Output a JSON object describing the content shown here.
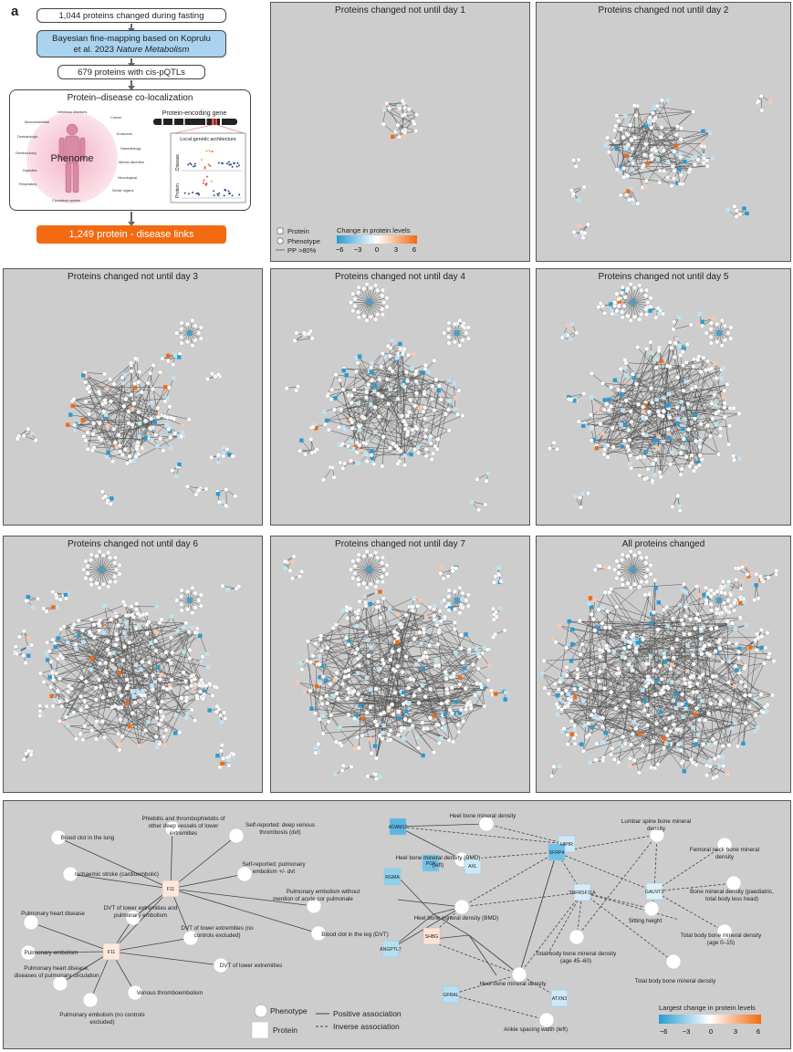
{
  "panel_a": {
    "letter": "a",
    "step1": "1,044 proteins changed during fasting",
    "step2_line1": "Bayesian fine-mapping based on Koprulu",
    "step2_line2_plain": "et al. 2023 ",
    "step2_line2_italic": "Nature Metabolism",
    "step3": "679 proteins with cis-pQTLs",
    "coloc_title": "Protein–disease co-localization",
    "gene_label": "Protein-encoding gene",
    "phenome_label": "Phenome",
    "local_arch_label": "Local genetic architecture",
    "axis_protein": "Protein",
    "axis_disease": "Disease",
    "phenome_categories": [
      "Infectious diseases",
      "Cancer",
      "Musculoskeletal",
      "Endocrine",
      "Dermatologic",
      "Haematology",
      "Genitourinary",
      "Mental disorders",
      "Digestive",
      "Neurological",
      "Respiratory",
      "Sense organs",
      "Circulatory system"
    ],
    "result": "1,249 protein - disease links"
  },
  "network_panels": [
    {
      "letter": "b",
      "title": "Proteins changed not until day 1"
    },
    {
      "letter": "c",
      "title": "Proteins changed not until day 2"
    },
    {
      "letter": "d",
      "title": "Proteins changed not until day 3"
    },
    {
      "letter": "e",
      "title": "Proteins changed not until day 4"
    },
    {
      "letter": "f",
      "title": "Proteins changed not until day 5"
    },
    {
      "letter": "g",
      "title": "Proteins changed not until day 6"
    },
    {
      "letter": "h",
      "title": "Proteins changed not until day 7"
    },
    {
      "letter": "i",
      "title": "All proteins changed"
    }
  ],
  "legend_b": {
    "protein": "Protein",
    "phenotype": "Phenotype",
    "edge": "PP >80%",
    "colorbar_title": "Change in protein levels",
    "ticks": [
      "−6",
      "−3",
      "0",
      "3",
      "6"
    ]
  },
  "panel_j": {
    "letter": "j",
    "legend": {
      "phenotype": "Phenotype",
      "protein": "Protein",
      "positive": "Positive association",
      "inverse": "Inverse association",
      "colorbar_title": "Largest change in protein levels",
      "ticks": [
        "−6",
        "−3",
        "0",
        "3",
        "6"
      ]
    },
    "proteins": [
      "F11",
      "F11",
      "ADAM12",
      "HIPIR",
      "SFRP4",
      "PGF",
      "AXL",
      "RGMA",
      "TNFRSF11A",
      "GALNT3",
      "ANGPTL7",
      "SHBG",
      "GFRAL",
      "ATXN3"
    ],
    "phenotypes": [
      "Blood clot in the lung",
      "Phlebitis and thrombophlebitis of",
      "other deep vessels of lower",
      "extremities",
      "Self-reported: deep venous",
      "thrombosis (dvt)",
      "Ischaemic stroke (cardioembolic)",
      "Self-reported: pulmonary",
      "embolism +/- dvt",
      "Pulmonary embolism without",
      "mention of acute cor pulmonale",
      "Pulmonary heart disease",
      "DVT of lower extremities and",
      "pulmonary embolism",
      "DVT of lower extremities (no",
      "controls excluded)",
      "Blood clot in the leg (DVT)",
      "Pulmonary embolism",
      "Pulmonary heart disease,",
      "diseases of pulmonary circulation",
      "DVT of lower extremities",
      "Venous thromboembolism",
      "Pulmonary embolism (no controls",
      "excluded)",
      "Heel bone mineral density",
      "Heel bone mineral density (BMD)",
      "(left)",
      "Lumbar spine bone mineral",
      "density",
      "Femoral neck bone mineral",
      "density",
      "Bone mineral density (paediatric,",
      "total body less head)",
      "Heel bone mineral density (BMD)",
      "Sitting height",
      "Total body bone mineral density",
      "(age 0–15)",
      "Total body bone mineral density",
      "(age 45–60)",
      "Heel bone mineral density",
      "Total body bone mineral density",
      "Ankle spacing width (left)"
    ]
  },
  "colors": {
    "panel_bg": "#cdcdcd",
    "down": "#2a9bd0",
    "up": "#f26a12",
    "neutral": "#ffffff"
  }
}
